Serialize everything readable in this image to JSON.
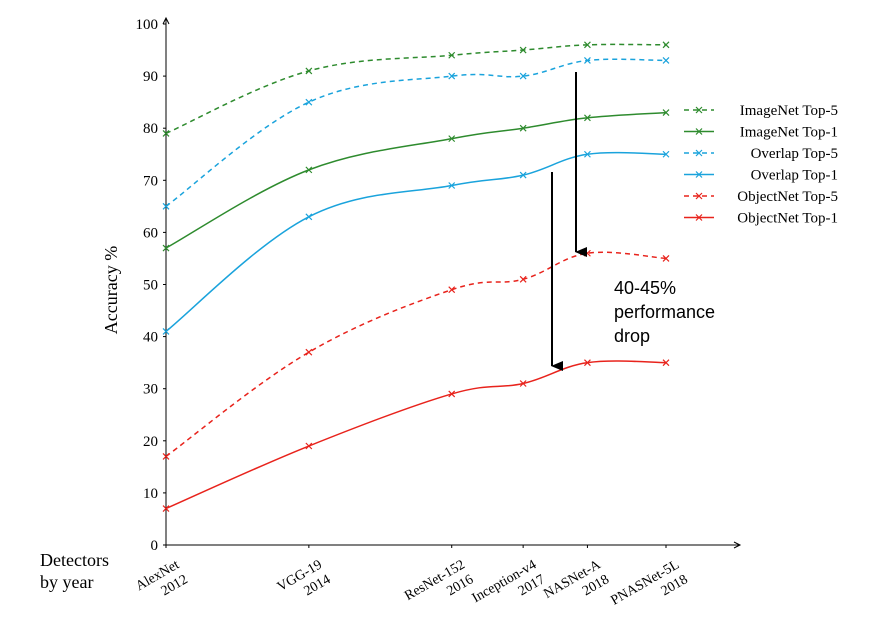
{
  "chart_data": {
    "type": "line",
    "ylabel": "Accuracy %",
    "xlabel_lines": [
      "Detectors",
      "by year"
    ],
    "ylim": [
      0,
      100
    ],
    "yticks": [
      0,
      10,
      20,
      30,
      40,
      50,
      60,
      70,
      80,
      90,
      100
    ],
    "categories": [
      {
        "lines": [
          "AlexNet",
          "2012"
        ],
        "x": 2012.0
      },
      {
        "lines": [
          "VGG-19",
          "2014"
        ],
        "x": 2014.0
      },
      {
        "lines": [
          "ResNet-152",
          "2016"
        ],
        "x": 2016.0
      },
      {
        "lines": [
          "Inception-v4",
          "2017"
        ],
        "x": 2017.0
      },
      {
        "lines": [
          "NASNet-A",
          "2018"
        ],
        "x": 2017.9
      },
      {
        "lines": [
          "PNASNet-5L",
          "2018"
        ],
        "x": 2019.0
      }
    ],
    "series": [
      {
        "name": "ImageNet Top-5",
        "color": "#2e8b2e",
        "dashed": true,
        "values": [
          79,
          91,
          94,
          95,
          96,
          96
        ]
      },
      {
        "name": "ImageNet Top-1",
        "color": "#2e8b2e",
        "dashed": false,
        "values": [
          57,
          72,
          78,
          80,
          82,
          83
        ]
      },
      {
        "name": "Overlap Top-5",
        "color": "#1aa3dc",
        "dashed": true,
        "values": [
          65,
          85,
          90,
          90,
          93,
          93
        ]
      },
      {
        "name": "Overlap Top-1",
        "color": "#1aa3dc",
        "dashed": false,
        "values": [
          41,
          63,
          69,
          71,
          75,
          75
        ]
      },
      {
        "name": "ObjectNet Top-5",
        "color": "#e8231c",
        "dashed": true,
        "values": [
          17,
          37,
          49,
          51,
          56,
          55
        ]
      },
      {
        "name": "ObjectNet Top-1",
        "color": "#e8231c",
        "dashed": false,
        "values": [
          7,
          19,
          29,
          31,
          35,
          35
        ]
      }
    ],
    "legend_position": "right",
    "annotation": {
      "lines": [
        "40-45%",
        "performance",
        "drop"
      ]
    }
  }
}
